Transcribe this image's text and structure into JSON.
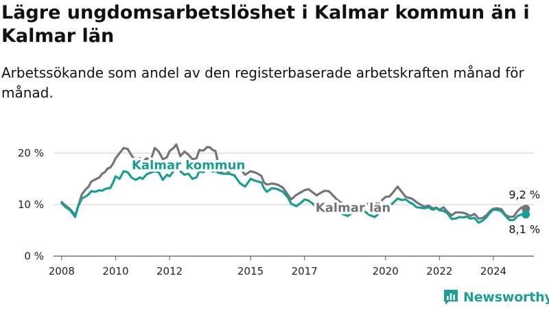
{
  "title": "Lägre ungdomsarbetslöshet i Kalmar kommun än i Kalmar län",
  "subtitle": "Arbetssökande som andel av den registerbaserade arbetskraften månad för månad.",
  "brand": {
    "name": "Newsworthy",
    "color": "#1a9e96",
    "icon": "bar-chart-logo-icon"
  },
  "chart_data": {
    "type": "line",
    "ylim": [
      0,
      22
    ],
    "xlim": [
      2007.7,
      2025.5
    ],
    "grid": true,
    "y_ticks": [
      {
        "value": 0,
        "label": "0 %"
      },
      {
        "value": 10,
        "label": "10 %"
      },
      {
        "value": 20,
        "label": "20 %"
      }
    ],
    "x_ticks": [
      {
        "value": 2008,
        "label": "2008"
      },
      {
        "value": 2010,
        "label": "2010"
      },
      {
        "value": 2012,
        "label": "2012"
      },
      {
        "value": 2015,
        "label": "2015"
      },
      {
        "value": 2017,
        "label": "2017"
      },
      {
        "value": 2020,
        "label": "2020"
      },
      {
        "value": 2022,
        "label": "2022"
      },
      {
        "value": 2024,
        "label": "2024"
      }
    ],
    "series": [
      {
        "name": "Kalmar län",
        "color": "#757375",
        "end_label": "9,2 %",
        "points": [
          [
            2008.0,
            10.5
          ],
          [
            2008.15,
            9.8
          ],
          [
            2008.3,
            9.2
          ],
          [
            2008.45,
            8.3
          ],
          [
            2008.5,
            7.8
          ],
          [
            2008.6,
            9.5
          ],
          [
            2008.75,
            12
          ],
          [
            2008.9,
            13
          ],
          [
            2009.0,
            13.5
          ],
          [
            2009.1,
            14.5
          ],
          [
            2009.25,
            14.9
          ],
          [
            2009.4,
            15.3
          ],
          [
            2009.5,
            16
          ],
          [
            2009.6,
            16.3
          ],
          [
            2009.7,
            17
          ],
          [
            2009.8,
            17.2
          ],
          [
            2009.9,
            17.9
          ],
          [
            2010.0,
            19
          ],
          [
            2010.15,
            20
          ],
          [
            2010.3,
            21
          ],
          [
            2010.45,
            20.8
          ],
          [
            2010.6,
            19.5
          ],
          [
            2010.75,
            18.4
          ],
          [
            2010.9,
            19
          ],
          [
            2011.0,
            18.3
          ],
          [
            2011.15,
            19
          ],
          [
            2011.3,
            18.6
          ],
          [
            2011.45,
            21
          ],
          [
            2011.6,
            20.3
          ],
          [
            2011.75,
            18.8
          ],
          [
            2011.9,
            19.2
          ],
          [
            2012.0,
            20.4
          ],
          [
            2012.15,
            21
          ],
          [
            2012.25,
            21.7
          ],
          [
            2012.4,
            19.4
          ],
          [
            2012.55,
            20.3
          ],
          [
            2012.7,
            19.7
          ],
          [
            2012.85,
            18.8
          ],
          [
            2013.0,
            19
          ],
          [
            2013.1,
            20.6
          ],
          [
            2013.25,
            20.5
          ],
          [
            2013.4,
            21.2
          ],
          [
            2013.5,
            21.1
          ],
          [
            2013.6,
            20.6
          ],
          [
            2013.7,
            20.4
          ],
          [
            2013.8,
            18
          ],
          [
            2013.9,
            16.3
          ],
          [
            2014.0,
            16.7
          ],
          [
            2014.2,
            16.4
          ],
          [
            2014.4,
            16.8
          ],
          [
            2014.6,
            17.1
          ],
          [
            2014.8,
            15.8
          ],
          [
            2015.0,
            16.5
          ],
          [
            2015.2,
            16.2
          ],
          [
            2015.4,
            15.6
          ],
          [
            2015.5,
            14.3
          ],
          [
            2015.6,
            13.9
          ],
          [
            2015.8,
            14.1
          ],
          [
            2016.0,
            13.9
          ],
          [
            2016.2,
            13.3
          ],
          [
            2016.4,
            11.8
          ],
          [
            2016.5,
            11
          ],
          [
            2016.7,
            11.9
          ],
          [
            2016.9,
            12.5
          ],
          [
            2017.0,
            12.8
          ],
          [
            2017.15,
            13
          ],
          [
            2017.3,
            12.4
          ],
          [
            2017.45,
            11.8
          ],
          [
            2017.6,
            12.3
          ],
          [
            2017.75,
            12.7
          ],
          [
            2017.9,
            12.6
          ],
          [
            2018.0,
            12.1
          ],
          [
            2018.2,
            11
          ],
          [
            2018.4,
            10.2
          ],
          [
            2018.6,
            9.6
          ],
          [
            2018.8,
            9.7
          ],
          [
            2019.0,
            9.5
          ],
          [
            2019.2,
            10
          ],
          [
            2019.4,
            10.2
          ],
          [
            2019.6,
            9.3
          ],
          [
            2019.8,
            10.5
          ],
          [
            2020.0,
            11.5
          ],
          [
            2020.15,
            11.6
          ],
          [
            2020.3,
            12.5
          ],
          [
            2020.45,
            13.5
          ],
          [
            2020.6,
            12.5
          ],
          [
            2020.75,
            11.5
          ],
          [
            2020.9,
            11.3
          ],
          [
            2021.0,
            11.1
          ],
          [
            2021.15,
            10.5
          ],
          [
            2021.3,
            10
          ],
          [
            2021.45,
            9.6
          ],
          [
            2021.6,
            9.8
          ],
          [
            2021.75,
            9.3
          ],
          [
            2021.9,
            9.4
          ],
          [
            2022.0,
            9
          ],
          [
            2022.15,
            9.5
          ],
          [
            2022.3,
            8.6
          ],
          [
            2022.45,
            7.9
          ],
          [
            2022.6,
            8.5
          ],
          [
            2022.75,
            8.5
          ],
          [
            2022.9,
            8.4
          ],
          [
            2023.0,
            8.2
          ],
          [
            2023.15,
            7.8
          ],
          [
            2023.3,
            8.2
          ],
          [
            2023.45,
            7.3
          ],
          [
            2023.6,
            7.4
          ],
          [
            2023.75,
            8
          ],
          [
            2023.9,
            8.9
          ],
          [
            2024.0,
            9.2
          ],
          [
            2024.15,
            9.3
          ],
          [
            2024.3,
            9.1
          ],
          [
            2024.45,
            8
          ],
          [
            2024.6,
            7.6
          ],
          [
            2024.75,
            7.7
          ],
          [
            2024.9,
            8.8
          ],
          [
            2025.05,
            9.5
          ],
          [
            2025.2,
            9.2
          ]
        ]
      },
      {
        "name": "Kalmar kommun",
        "color": "#159e95",
        "end_label": "8,1 %",
        "points": [
          [
            2008.0,
            10.3
          ],
          [
            2008.15,
            9.5
          ],
          [
            2008.3,
            9
          ],
          [
            2008.45,
            8
          ],
          [
            2008.5,
            7.6
          ],
          [
            2008.6,
            9.5
          ],
          [
            2008.75,
            11.2
          ],
          [
            2008.9,
            11.6
          ],
          [
            2009.0,
            12
          ],
          [
            2009.1,
            12.6
          ],
          [
            2009.25,
            12.5
          ],
          [
            2009.4,
            12.8
          ],
          [
            2009.5,
            12.7
          ],
          [
            2009.6,
            13
          ],
          [
            2009.7,
            13.2
          ],
          [
            2009.8,
            13.2
          ],
          [
            2009.9,
            14.2
          ],
          [
            2010.0,
            15.5
          ],
          [
            2010.15,
            15
          ],
          [
            2010.3,
            16.5
          ],
          [
            2010.45,
            16.3
          ],
          [
            2010.6,
            15.2
          ],
          [
            2010.75,
            14.8
          ],
          [
            2010.9,
            15.3
          ],
          [
            2011.0,
            15
          ],
          [
            2011.15,
            15.9
          ],
          [
            2011.3,
            16.2
          ],
          [
            2011.45,
            16.5
          ],
          [
            2011.6,
            16.3
          ],
          [
            2011.75,
            14.8
          ],
          [
            2011.9,
            15.8
          ],
          [
            2012.0,
            15.5
          ],
          [
            2012.15,
            16.5
          ],
          [
            2012.25,
            17
          ],
          [
            2012.4,
            16.5
          ],
          [
            2012.55,
            15.8
          ],
          [
            2012.7,
            16
          ],
          [
            2012.85,
            15
          ],
          [
            2013.0,
            15.3
          ],
          [
            2013.1,
            16.5
          ],
          [
            2013.25,
            16.3
          ],
          [
            2013.4,
            17
          ],
          [
            2013.5,
            16.8
          ],
          [
            2013.6,
            16.4
          ],
          [
            2013.7,
            16.6
          ],
          [
            2013.8,
            16.2
          ],
          [
            2013.9,
            16.1
          ],
          [
            2014.0,
            16
          ],
          [
            2014.2,
            16
          ],
          [
            2014.4,
            15.7
          ],
          [
            2014.6,
            14.2
          ],
          [
            2014.8,
            13.5
          ],
          [
            2015.0,
            15
          ],
          [
            2015.2,
            14.6
          ],
          [
            2015.4,
            14.3
          ],
          [
            2015.5,
            13.2
          ],
          [
            2015.6,
            12.5
          ],
          [
            2015.8,
            13.2
          ],
          [
            2016.0,
            13
          ],
          [
            2016.2,
            12.5
          ],
          [
            2016.4,
            11.3
          ],
          [
            2016.5,
            10.2
          ],
          [
            2016.7,
            9.7
          ],
          [
            2016.9,
            10.5
          ],
          [
            2017.0,
            11
          ],
          [
            2017.15,
            10.8
          ],
          [
            2017.3,
            10.2
          ],
          [
            2017.45,
            9.5
          ],
          [
            2017.6,
            8.5
          ],
          [
            2017.75,
            8.6
          ],
          [
            2017.9,
            9.2
          ],
          [
            2018.0,
            9.5
          ],
          [
            2018.2,
            9
          ],
          [
            2018.4,
            8.2
          ],
          [
            2018.6,
            7.8
          ],
          [
            2018.8,
            8.5
          ],
          [
            2019.0,
            9
          ],
          [
            2019.2,
            8.8
          ],
          [
            2019.4,
            8
          ],
          [
            2019.6,
            7.6
          ],
          [
            2019.8,
            8.5
          ],
          [
            2020.0,
            10
          ],
          [
            2020.15,
            9.8
          ],
          [
            2020.3,
            10.4
          ],
          [
            2020.45,
            11.2
          ],
          [
            2020.6,
            10.9
          ],
          [
            2020.75,
            11
          ],
          [
            2020.9,
            10.4
          ],
          [
            2021.0,
            10.2
          ],
          [
            2021.15,
            9.5
          ],
          [
            2021.3,
            9.4
          ],
          [
            2021.45,
            9.3
          ],
          [
            2021.6,
            9.5
          ],
          [
            2021.75,
            9
          ],
          [
            2021.9,
            9.3
          ],
          [
            2022.0,
            8.9
          ],
          [
            2022.15,
            8.8
          ],
          [
            2022.3,
            8.3
          ],
          [
            2022.45,
            7.2
          ],
          [
            2022.6,
            7.3
          ],
          [
            2022.75,
            7.6
          ],
          [
            2022.9,
            7.5
          ],
          [
            2023.0,
            7.7
          ],
          [
            2023.15,
            7.3
          ],
          [
            2023.3,
            7.4
          ],
          [
            2023.45,
            6.5
          ],
          [
            2023.6,
            6.9
          ],
          [
            2023.75,
            7.6
          ],
          [
            2023.9,
            8.6
          ],
          [
            2024.0,
            9
          ],
          [
            2024.15,
            9
          ],
          [
            2024.3,
            8.7
          ],
          [
            2024.45,
            7.8
          ],
          [
            2024.6,
            7
          ],
          [
            2024.75,
            7
          ],
          [
            2024.9,
            7.8
          ],
          [
            2025.05,
            8.1
          ],
          [
            2025.2,
            8.1
          ]
        ]
      }
    ]
  }
}
